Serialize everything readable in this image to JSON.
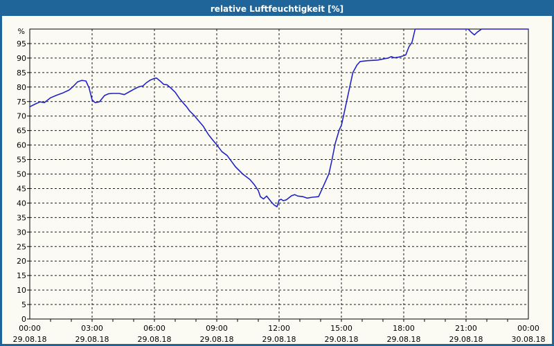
{
  "chart_data": {
    "type": "line",
    "title": "relative Luftfeuchtigkeit [%]",
    "ylabel_unit": "%",
    "ylim": [
      0,
      100
    ],
    "y_ticks": [
      0,
      5,
      10,
      15,
      20,
      25,
      30,
      35,
      40,
      45,
      50,
      55,
      60,
      65,
      70,
      75,
      80,
      85,
      90,
      95
    ],
    "grid": true,
    "grid_style": "dashed",
    "x_minor_tick_step_hours": 1,
    "x_major": [
      {
        "hour": 0,
        "time": "00:00",
        "date": "29.08.18"
      },
      {
        "hour": 3,
        "time": "03:00",
        "date": "29.08.18"
      },
      {
        "hour": 6,
        "time": "06:00",
        "date": "29.08.18"
      },
      {
        "hour": 9,
        "time": "09:00",
        "date": "29.08.18"
      },
      {
        "hour": 12,
        "time": "12:00",
        "date": "29.08.18"
      },
      {
        "hour": 15,
        "time": "15:00",
        "date": "29.08.18"
      },
      {
        "hour": 18,
        "time": "18:00",
        "date": "29.08.18"
      },
      {
        "hour": 21,
        "time": "21:00",
        "date": "29.08.18"
      },
      {
        "hour": 24,
        "time": "00:00",
        "date": "30.08.18"
      }
    ],
    "colors": {
      "line": "#2121c8",
      "titlebar_bg": "#20659a",
      "titlebar_text": "#ffffff",
      "background": "#fbfbf4",
      "grid": "#1a1a1a",
      "axis": "#000000"
    },
    "series": [
      {
        "name": "relative Luftfeuchtigkeit",
        "points": [
          [
            0.0,
            73.2
          ],
          [
            0.25,
            74.1
          ],
          [
            0.5,
            74.9
          ],
          [
            0.7,
            74.6
          ],
          [
            1.0,
            76.3
          ],
          [
            1.3,
            77.2
          ],
          [
            1.6,
            78.0
          ],
          [
            1.9,
            79.0
          ],
          [
            2.1,
            80.3
          ],
          [
            2.3,
            81.8
          ],
          [
            2.5,
            82.3
          ],
          [
            2.7,
            82.1
          ],
          [
            2.85,
            79.8
          ],
          [
            3.0,
            75.6
          ],
          [
            3.15,
            74.6
          ],
          [
            3.35,
            74.9
          ],
          [
            3.6,
            77.1
          ],
          [
            3.8,
            77.7
          ],
          [
            4.0,
            77.8
          ],
          [
            4.3,
            77.8
          ],
          [
            4.55,
            77.4
          ],
          [
            4.8,
            78.4
          ],
          [
            5.0,
            79.2
          ],
          [
            5.25,
            80.1
          ],
          [
            5.45,
            80.4
          ],
          [
            5.6,
            81.4
          ],
          [
            5.8,
            82.4
          ],
          [
            6.0,
            83.0
          ],
          [
            6.1,
            83.1
          ],
          [
            6.3,
            81.9
          ],
          [
            6.45,
            80.9
          ],
          [
            6.6,
            80.8
          ],
          [
            6.8,
            79.6
          ],
          [
            7.0,
            78.2
          ],
          [
            7.2,
            76.1
          ],
          [
            7.4,
            74.4
          ],
          [
            7.55,
            73.2
          ],
          [
            7.7,
            71.7
          ],
          [
            7.9,
            70.3
          ],
          [
            8.1,
            68.6
          ],
          [
            8.35,
            66.5
          ],
          [
            8.6,
            63.6
          ],
          [
            8.8,
            61.8
          ],
          [
            9.0,
            60.1
          ],
          [
            9.25,
            57.7
          ],
          [
            9.5,
            56.4
          ],
          [
            9.9,
            52.5
          ],
          [
            10.25,
            50.0
          ],
          [
            10.6,
            48.1
          ],
          [
            10.8,
            46.4
          ],
          [
            11.0,
            44.3
          ],
          [
            11.1,
            42.2
          ],
          [
            11.25,
            41.4
          ],
          [
            11.4,
            42.4
          ],
          [
            11.6,
            40.6
          ],
          [
            11.75,
            39.4
          ],
          [
            11.9,
            38.7
          ],
          [
            12.0,
            41.0
          ],
          [
            12.1,
            41.3
          ],
          [
            12.2,
            40.8
          ],
          [
            12.35,
            41.1
          ],
          [
            12.6,
            42.5
          ],
          [
            12.75,
            42.9
          ],
          [
            12.9,
            42.4
          ],
          [
            13.15,
            42.2
          ],
          [
            13.35,
            41.7
          ],
          [
            13.6,
            42.0
          ],
          [
            13.9,
            42.2
          ],
          [
            14.1,
            45.3
          ],
          [
            14.25,
            47.7
          ],
          [
            14.4,
            50.1
          ],
          [
            14.55,
            55.0
          ],
          [
            14.7,
            60.5
          ],
          [
            14.9,
            65.3
          ],
          [
            15.0,
            66.8
          ],
          [
            15.1,
            70.0
          ],
          [
            15.25,
            75.0
          ],
          [
            15.4,
            80.0
          ],
          [
            15.55,
            85.0
          ],
          [
            15.75,
            87.6
          ],
          [
            15.9,
            88.8
          ],
          [
            16.25,
            89.1
          ],
          [
            16.75,
            89.3
          ],
          [
            17.1,
            89.8
          ],
          [
            17.25,
            90.0
          ],
          [
            17.4,
            90.5
          ],
          [
            17.55,
            90.1
          ],
          [
            17.75,
            90.3
          ],
          [
            18.0,
            90.8
          ],
          [
            18.1,
            91.1
          ],
          [
            18.25,
            93.9
          ],
          [
            18.4,
            95.5
          ],
          [
            18.55,
            100.0
          ],
          [
            21.1,
            100.0
          ],
          [
            21.25,
            98.9
          ],
          [
            21.4,
            98.0
          ],
          [
            21.55,
            99.0
          ],
          [
            21.75,
            100.0
          ],
          [
            24.0,
            100.0
          ]
        ]
      }
    ]
  }
}
